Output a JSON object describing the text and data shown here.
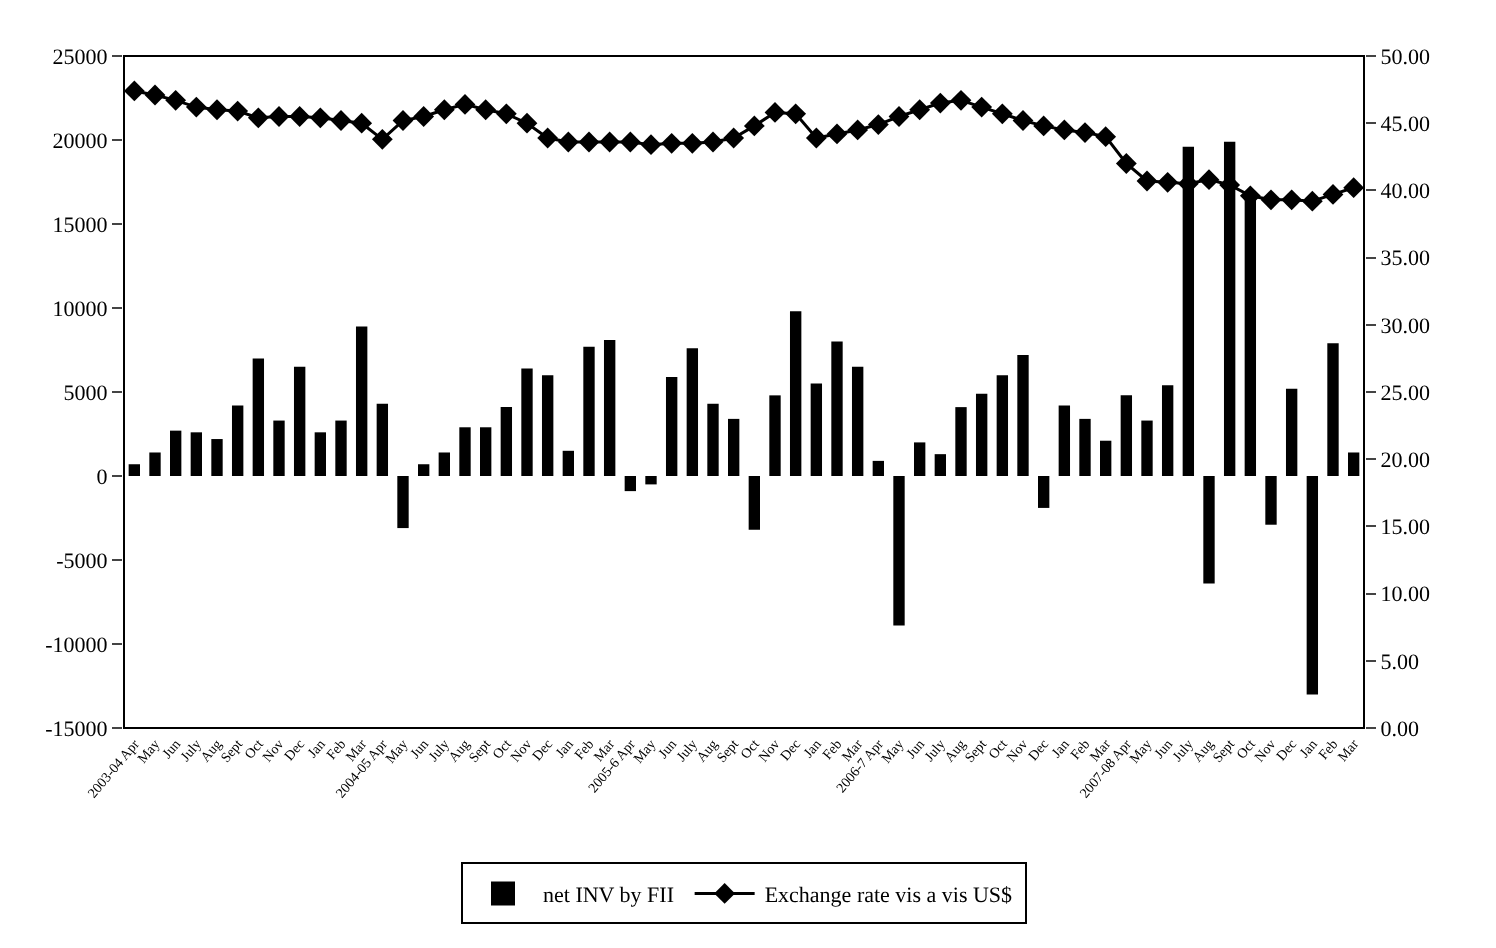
{
  "chart_data": {
    "type": "bar",
    "categories": [
      "2003-04 Apr",
      "May",
      "Jun",
      "July",
      "Aug",
      "Sept",
      "Oct",
      "Nov",
      "Dec",
      "Jan",
      "Feb",
      "Mar",
      "2004-05 Apr",
      "May",
      "Jun",
      "July",
      "Aug",
      "Sept",
      "Oct",
      "Nov",
      "Dec",
      "Jan",
      "Feb",
      "Mar",
      "2005-6 Apr",
      "May",
      "Jun",
      "July",
      "Aug",
      "Sept",
      "Oct",
      "Nov",
      "Dec",
      "Jan",
      "Feb",
      "Mar",
      "2006-7 Apr",
      "May",
      "Jun",
      "July",
      "Aug",
      "Sept",
      "Oct",
      "Nov",
      "Dec",
      "Jan",
      "Feb",
      "Mar",
      "2007-08 Apr",
      "May",
      "Jun",
      "July",
      "Aug",
      "Sept",
      "Oct",
      "Nov",
      "Dec",
      "Jan",
      "Feb",
      "Mar"
    ],
    "series": [
      {
        "name": "net INV by FII",
        "color": "#000000",
        "values": [
          700,
          1400,
          2700,
          2600,
          2200,
          4200,
          7000,
          3300,
          6500,
          2600,
          3300,
          8900,
          4300,
          -3100,
          700,
          1400,
          2900,
          2900,
          4100,
          6400,
          6000,
          1500,
          7700,
          8100,
          -900,
          -500,
          5900,
          7600,
          4300,
          3400,
          -3200,
          4800,
          9800,
          5500,
          8000,
          6500,
          900,
          -8900,
          2000,
          1300,
          4100,
          4900,
          6000,
          7200,
          -1900,
          4200,
          3400,
          2100,
          4800,
          3300,
          5400,
          19600,
          -6400,
          19900,
          16800,
          -2900,
          5200,
          -13000,
          7900,
          1400
        ]
      },
      {
        "name": "Exchange rate vis a vis US$",
        "type": "line",
        "axis": "y2",
        "color": "#000000",
        "marker": "diamond",
        "line_style": "solid",
        "values": [
          47.4,
          47.1,
          46.7,
          46.2,
          46.0,
          45.9,
          45.4,
          45.5,
          45.5,
          45.4,
          45.2,
          45.0,
          43.8,
          45.2,
          45.5,
          46.0,
          46.4,
          46.0,
          45.7,
          45.0,
          43.9,
          43.6,
          43.6,
          43.6,
          43.6,
          43.4,
          43.5,
          43.5,
          43.6,
          43.9,
          44.8,
          45.8,
          45.7,
          43.9,
          44.2,
          44.5,
          44.9,
          45.5,
          46.0,
          46.5,
          46.7,
          46.2,
          45.7,
          45.2,
          44.8,
          44.5,
          44.3,
          44.0,
          42.0,
          40.7,
          40.6,
          40.5,
          40.8,
          40.4,
          39.6,
          39.3,
          39.3,
          39.2,
          39.7,
          40.2
        ]
      }
    ],
    "ylim": [
      -15000,
      25000
    ],
    "yticks": [
      -15000,
      -10000,
      -5000,
      0,
      5000,
      10000,
      15000,
      20000,
      25000
    ],
    "y2lim": [
      0,
      50
    ],
    "y2ticks": [
      {
        "value": 0,
        "label": "0.00"
      },
      {
        "value": 5,
        "label": "5.00"
      },
      {
        "value": 10,
        "label": "10.00"
      },
      {
        "value": 15,
        "label": "15.00"
      },
      {
        "value": 20,
        "label": "20.00"
      },
      {
        "value": 25,
        "label": "25.00"
      },
      {
        "value": 30,
        "label": "30.00"
      },
      {
        "value": 35,
        "label": "35.00"
      },
      {
        "value": 40,
        "label": "40.00"
      },
      {
        "value": 45,
        "label": "45.00"
      },
      {
        "value": 50,
        "label": "50.00"
      }
    ],
    "legend": "bottom"
  }
}
